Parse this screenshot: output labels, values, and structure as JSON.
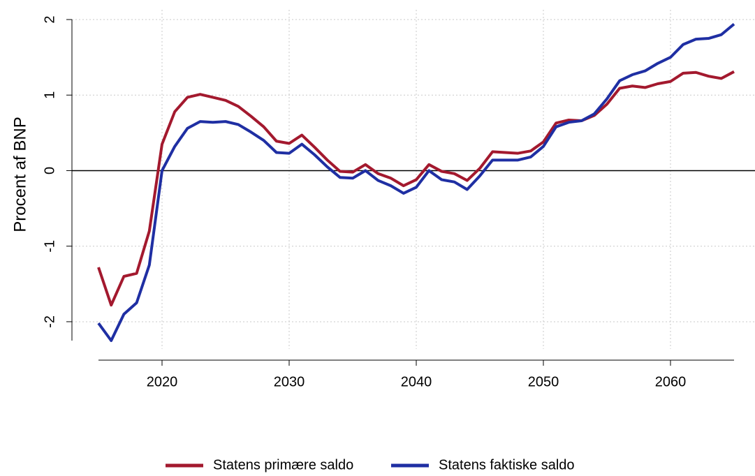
{
  "chart_data": {
    "type": "line",
    "y_label": "Procent af BNP",
    "x": [
      2015,
      2016,
      2017,
      2018,
      2019,
      2020,
      2021,
      2022,
      2023,
      2024,
      2025,
      2026,
      2027,
      2028,
      2029,
      2030,
      2031,
      2032,
      2033,
      2034,
      2035,
      2036,
      2037,
      2038,
      2039,
      2040,
      2041,
      2042,
      2043,
      2044,
      2045,
      2046,
      2047,
      2048,
      2049,
      2050,
      2051,
      2052,
      2053,
      2054,
      2055,
      2056,
      2057,
      2058,
      2059,
      2060,
      2061,
      2062,
      2063,
      2064,
      2065
    ],
    "series": [
      {
        "name": "Statens primære saldo",
        "color": "#a3192e",
        "values": [
          -1.28,
          -1.78,
          -1.4,
          -1.36,
          -0.8,
          0.35,
          0.78,
          0.97,
          1.01,
          0.97,
          0.93,
          0.85,
          0.72,
          0.58,
          0.39,
          0.36,
          0.47,
          0.31,
          0.14,
          -0.01,
          -0.02,
          0.08,
          -0.04,
          -0.1,
          -0.2,
          -0.12,
          0.08,
          -0.01,
          -0.04,
          -0.13,
          0.03,
          0.25,
          0.24,
          0.23,
          0.26,
          0.38,
          0.63,
          0.67,
          0.66,
          0.73,
          0.88,
          1.09,
          1.12,
          1.1,
          1.15,
          1.18,
          1.29,
          1.3,
          1.25,
          1.22,
          1.31
        ]
      },
      {
        "name": "Statens faktiske saldo",
        "color": "#1f2fa3",
        "values": [
          -2.02,
          -2.25,
          -1.9,
          -1.75,
          -1.25,
          0.0,
          0.32,
          0.56,
          0.65,
          0.64,
          0.65,
          0.61,
          0.51,
          0.4,
          0.24,
          0.23,
          0.35,
          0.21,
          0.05,
          -0.09,
          -0.1,
          0.0,
          -0.13,
          -0.2,
          -0.3,
          -0.22,
          0.0,
          -0.12,
          -0.15,
          -0.25,
          -0.07,
          0.14,
          0.14,
          0.14,
          0.18,
          0.32,
          0.58,
          0.64,
          0.66,
          0.75,
          0.95,
          1.19,
          1.27,
          1.32,
          1.42,
          1.5,
          1.67,
          1.74,
          1.75,
          1.8,
          1.94
        ]
      }
    ],
    "xlim": [
      2015,
      2065
    ],
    "xticks": [
      2020,
      2030,
      2040,
      2050,
      2060
    ],
    "ylim": [
      -2.25,
      2
    ],
    "yticks": [
      -2,
      -1,
      0,
      1,
      2
    ],
    "grid": true,
    "reference_line": 0,
    "legend": "bottom"
  }
}
